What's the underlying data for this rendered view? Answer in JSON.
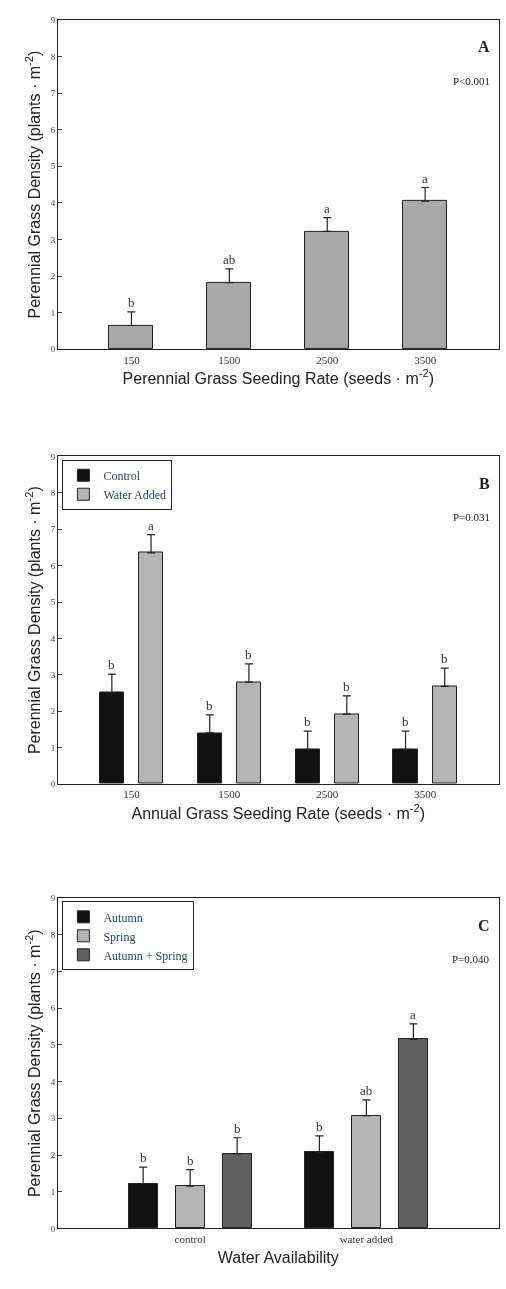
{
  "chart_data": [
    {
      "type": "bar",
      "categories": [
        "150",
        "1500",
        "2500",
        "3500"
      ],
      "xlabel": "Perennial Grass Seeding Rate (seeds · m$^{-2}$)",
      "ylabel": "Perennial Grass Density (plants · m$^{-2}$)",
      "values": [
        0.65,
        1.82,
        3.22,
        4.05
      ],
      "color": "#a9a9a9",
      "errors": [
        [
          0.65,
          1.02
        ],
        [
          1.82,
          2.2
        ],
        [
          3.22,
          3.6
        ],
        [
          4.05,
          4.42
        ]
      ],
      "ylim": [
        0,
        9
      ],
      "yticks": [
        0,
        1,
        2,
        3,
        4,
        5,
        6,
        7,
        8,
        9
      ],
      "annotations": [
        "A",
        "P<0.001",
        {
          "text": "b",
          "x": "150",
          "y": 1.02
        },
        {
          "text": "ab",
          "x": "1500",
          "y": 2.2
        },
        {
          "text": "a",
          "x": "2500",
          "y": 3.6
        },
        {
          "text": "a",
          "x": "3500",
          "y": 4.42
        }
      ]
    },
    {
      "type": "bar",
      "categories": [
        "150",
        "1500",
        "2500",
        "3500"
      ],
      "xlabel": "Annual Grass Seeding Rate (seeds · m$^{-2}$)",
      "ylabel": "Perennial Grass Density (plants · m$^{-2}$)",
      "series": [
        {
          "name": "Control",
          "color": "#111111",
          "values": [
            2.5,
            1.4,
            0.95,
            0.95
          ],
          "errors": [
            [
              2.5,
              3.02
            ],
            [
              1.4,
              1.9
            ],
            [
              0.95,
              1.45
            ],
            [
              0.95,
              1.45
            ]
          ]
        },
        {
          "name": "Water Added",
          "color": "#b4b4b4",
          "values": [
            6.35,
            2.8,
            1.92,
            2.68
          ],
          "errors": [
            [
              6.35,
              6.85
            ],
            [
              2.8,
              3.3
            ],
            [
              1.92,
              2.42
            ],
            [
              2.68,
              3.18
            ]
          ]
        }
      ],
      "ylim": [
        0,
        9
      ],
      "yticks": [
        0,
        1,
        2,
        3,
        4,
        5,
        6,
        7,
        8,
        9
      ],
      "legend": "top left",
      "annotations": [
        "B",
        "P=0.031",
        "b",
        "a",
        "b",
        "b",
        "b",
        "b",
        "b",
        "b"
      ]
    },
    {
      "type": "bar",
      "categories": [
        "control",
        "water added"
      ],
      "xlabel": "Water Availability",
      "ylabel": "Perennial Grass Density (plants · m$^{-2}$)",
      "series": [
        {
          "name": "Autumn",
          "color": "#111111",
          "values": [
            1.22,
            2.08
          ],
          "errors": [
            [
              1.22,
              1.67
            ],
            [
              2.08,
              2.52
            ]
          ]
        },
        {
          "name": "Spring",
          "color": "#b4b4b4",
          "values": [
            1.15,
            3.07
          ],
          "errors": [
            [
              1.15,
              1.6
            ],
            [
              3.07,
              3.5
            ]
          ]
        },
        {
          "name": "Autumn + Spring",
          "color": "#606060",
          "values": [
            2.03,
            5.15
          ],
          "errors": [
            [
              2.03,
              2.47
            ],
            [
              5.15,
              5.57
            ]
          ]
        }
      ],
      "ylim": [
        0,
        9
      ],
      "yticks": [
        0,
        1,
        2,
        3,
        4,
        5,
        6,
        7,
        8,
        9
      ],
      "legend": "top left",
      "annotations": [
        "C",
        "P=0.040",
        "b",
        "b",
        "b",
        "b",
        "ab",
        "a"
      ]
    }
  ]
}
